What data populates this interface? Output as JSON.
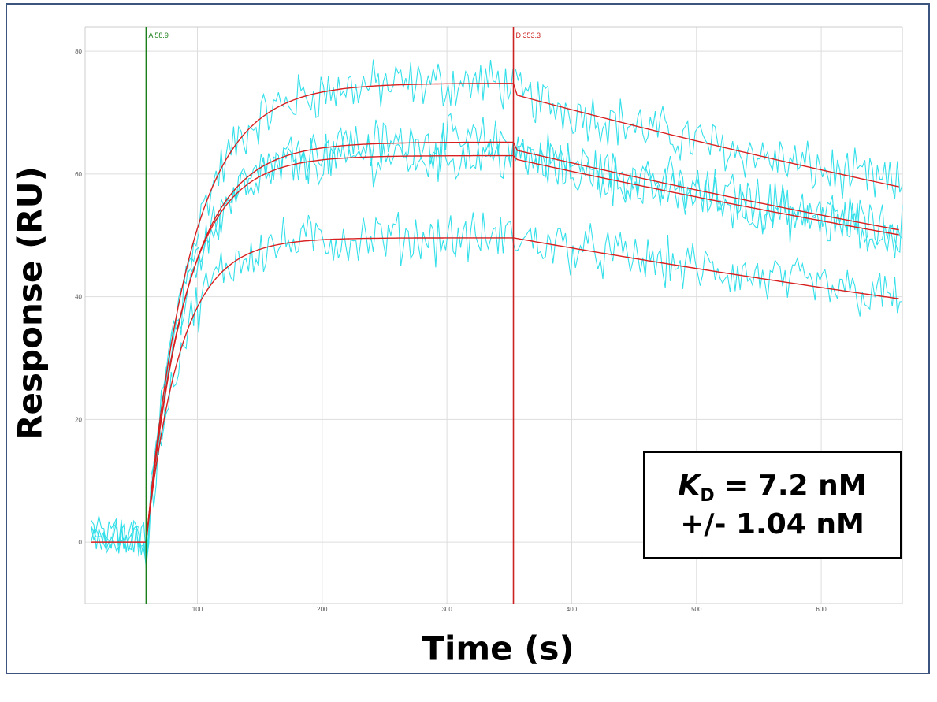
{
  "chart_data": {
    "type": "line",
    "title": "",
    "xlabel": "Time (s)",
    "ylabel": "Response (RU)",
    "xlim": [
      10,
      665
    ],
    "ylim": [
      -10,
      84
    ],
    "x_ticks": [
      100,
      200,
      300,
      400,
      500,
      600
    ],
    "y_ticks": [
      0,
      20,
      40,
      60,
      80
    ],
    "grid": true,
    "association_start": 58.9,
    "dissociation_start": 353.3,
    "x_end": 665,
    "baseline_start": 15,
    "markers": [
      {
        "label": "A 58.9",
        "x": 58.9,
        "color": "#1a7f1a"
      },
      {
        "label": "D 353.3",
        "x": 353.3,
        "color": "#cc2222"
      }
    ],
    "series": [
      {
        "plateau": 74.8,
        "k_on": 0.028,
        "dissoc_start": 73.0,
        "dissoc_end": 57.8
      },
      {
        "plateau": 65.2,
        "k_on": 0.03,
        "dissoc_start": 64.0,
        "dissoc_end": 50.8
      },
      {
        "plateau": 63.0,
        "k_on": 0.032,
        "dissoc_start": 62.5,
        "dissoc_end": 50.0
      },
      {
        "plateau": 49.6,
        "k_on": 0.036,
        "dissoc_start": 49.6,
        "dissoc_end": 39.6
      }
    ],
    "colors": {
      "raw": "#33e0ea",
      "fit": "#d92020",
      "grid": "#dddddd",
      "axis": "#cccccc"
    },
    "kd_text": {
      "symbol": "K",
      "subscript": "D",
      "value": " = 7.2 nM",
      "error": "+/- 1.04 nM"
    }
  }
}
